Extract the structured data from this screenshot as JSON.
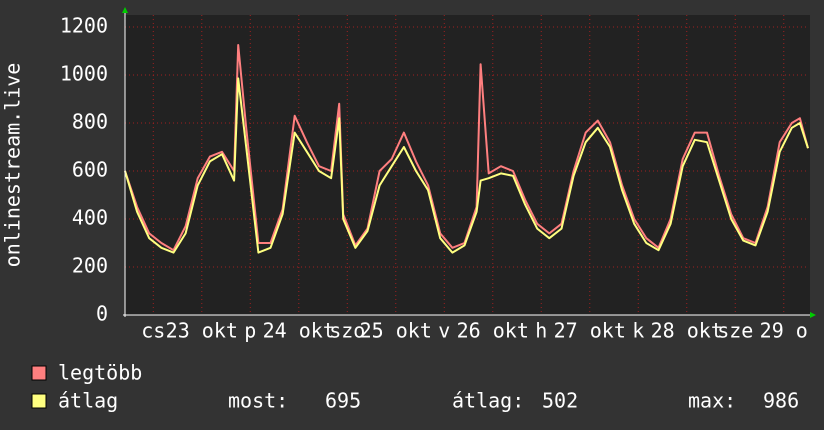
{
  "chart_data": {
    "type": "line",
    "y_label": "onlinestream.live",
    "x": [
      0,
      3,
      6,
      9,
      12,
      15,
      18,
      21,
      24,
      27,
      28,
      30,
      33,
      36,
      39,
      42,
      45,
      48,
      51,
      53,
      54,
      57,
      60,
      63,
      66,
      69,
      72,
      75,
      78,
      81,
      84,
      87,
      88,
      90,
      93,
      96,
      99,
      102,
      105,
      108,
      111,
      114,
      117,
      120,
      123,
      126,
      129,
      132,
      135,
      138,
      141,
      144,
      147,
      150,
      153,
      156,
      159,
      162,
      165,
      167,
      169
    ],
    "series": [
      {
        "name": "legtöbb",
        "color": "#ff7f7f",
        "values": [
          600,
          450,
          340,
          300,
          270,
          370,
          570,
          660,
          680,
          600,
          1125,
          780,
          300,
          300,
          440,
          830,
          720,
          620,
          600,
          880,
          420,
          290,
          360,
          600,
          650,
          760,
          640,
          540,
          340,
          280,
          300,
          450,
          1045,
          590,
          620,
          600,
          480,
          380,
          340,
          380,
          600,
          760,
          810,
          720,
          540,
          400,
          320,
          280,
          400,
          650,
          760,
          760,
          580,
          420,
          320,
          300,
          450,
          720,
          800,
          820,
          695
        ]
      },
      {
        "name": "átlag",
        "color": "#ffff80",
        "values": [
          600,
          430,
          320,
          280,
          260,
          340,
          540,
          640,
          670,
          560,
          986,
          700,
          260,
          280,
          420,
          760,
          680,
          600,
          570,
          820,
          400,
          280,
          350,
          540,
          620,
          700,
          600,
          520,
          320,
          260,
          290,
          430,
          560,
          570,
          590,
          580,
          460,
          360,
          320,
          360,
          580,
          720,
          780,
          700,
          520,
          380,
          300,
          270,
          380,
          620,
          730,
          720,
          560,
          400,
          310,
          290,
          430,
          680,
          780,
          800,
          695
        ]
      }
    ],
    "xlim": [
      0,
      169
    ],
    "xticks": [
      {
        "value": 7,
        "label": "cs"
      },
      {
        "value": 19,
        "label": "23 okt"
      },
      {
        "value": 31,
        "label": "p"
      },
      {
        "value": 43,
        "label": "24 okt"
      },
      {
        "value": 55,
        "label": "szo"
      },
      {
        "value": 67,
        "label": "25 okt"
      },
      {
        "value": 79,
        "label": "v"
      },
      {
        "value": 91,
        "label": "26 okt"
      },
      {
        "value": 103,
        "label": "h"
      },
      {
        "value": 115,
        "label": "27 okt"
      },
      {
        "value": 127,
        "label": "k"
      },
      {
        "value": 139,
        "label": "28 okt"
      },
      {
        "value": 151,
        "label": "sze"
      },
      {
        "value": 163,
        "label": "29 o"
      }
    ],
    "ylim": [
      0,
      1200
    ],
    "yticks": [
      0,
      200,
      400,
      600,
      800,
      1000,
      1200
    ],
    "grid": true,
    "stats": [
      {
        "label": "most:",
        "value": 695
      },
      {
        "label": "átlag:",
        "value": 502
      },
      {
        "label": "max:",
        "value": 986
      }
    ]
  }
}
